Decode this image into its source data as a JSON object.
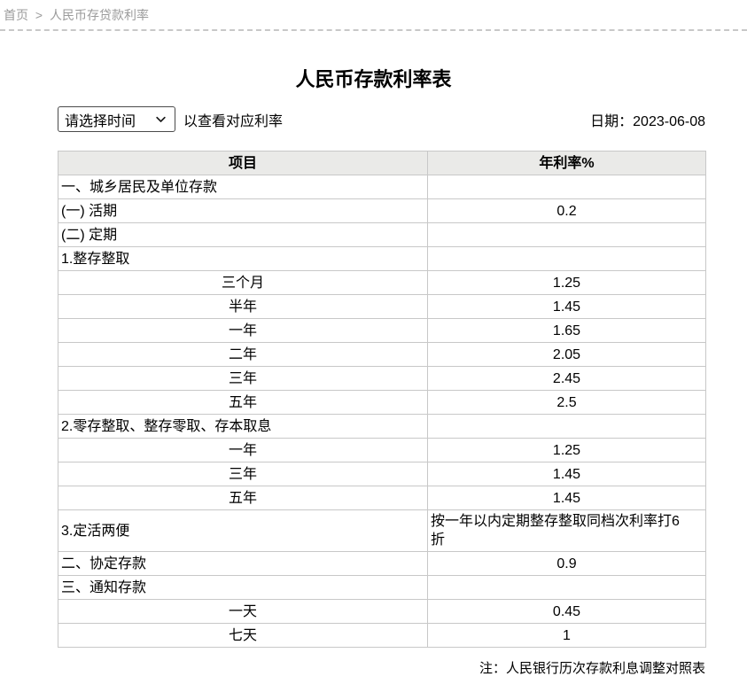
{
  "breadcrumb": {
    "home": "首页",
    "separator": ">",
    "current": "人民币存贷款利率"
  },
  "title": "人民币存款利率表",
  "selector": {
    "value": "请选择时间",
    "hint": "以查看对应利率"
  },
  "date": {
    "label": "日期：",
    "value": "2023-06-08"
  },
  "table": {
    "headers": {
      "item": "项目",
      "rate": "年利率%"
    },
    "rows": [
      {
        "item": "一、城乡居民及单位存款",
        "rate": "",
        "item_align": "left",
        "rate_align": "center"
      },
      {
        "item": "(一) 活期",
        "rate": "0.2",
        "item_align": "left",
        "rate_align": "center"
      },
      {
        "item": "(二) 定期",
        "rate": "",
        "item_align": "left",
        "rate_align": "center"
      },
      {
        "item": "1.整存整取",
        "rate": "",
        "item_align": "left",
        "rate_align": "center"
      },
      {
        "item": "三个月",
        "rate": "1.25",
        "item_align": "center",
        "rate_align": "center"
      },
      {
        "item": "半年",
        "rate": "1.45",
        "item_align": "center",
        "rate_align": "center"
      },
      {
        "item": "一年",
        "rate": "1.65",
        "item_align": "center",
        "rate_align": "center"
      },
      {
        "item": "二年",
        "rate": "2.05",
        "item_align": "center",
        "rate_align": "center"
      },
      {
        "item": "三年",
        "rate": "2.45",
        "item_align": "center",
        "rate_align": "center"
      },
      {
        "item": "五年",
        "rate": "2.5",
        "item_align": "center",
        "rate_align": "center"
      },
      {
        "item": "2.零存整取、整存零取、存本取息",
        "rate": "",
        "item_align": "left",
        "rate_align": "center"
      },
      {
        "item": "一年",
        "rate": "1.25",
        "item_align": "center",
        "rate_align": "center"
      },
      {
        "item": "三年",
        "rate": "1.45",
        "item_align": "center",
        "rate_align": "center"
      },
      {
        "item": "五年",
        "rate": "1.45",
        "item_align": "center",
        "rate_align": "center"
      },
      {
        "item": "3.定活两便",
        "rate": "按一年以内定期整存整取同档次利率打6折",
        "item_align": "left",
        "rate_align": "left"
      },
      {
        "item": "二、协定存款",
        "rate": "0.9",
        "item_align": "left",
        "rate_align": "center"
      },
      {
        "item": "三、通知存款",
        "rate": "",
        "item_align": "left",
        "rate_align": "center"
      },
      {
        "item": "一天",
        "rate": "0.45",
        "item_align": "center",
        "rate_align": "center"
      },
      {
        "item": "七天",
        "rate": "1",
        "item_align": "center",
        "rate_align": "center"
      }
    ]
  },
  "note": "注：人民银行历次存款利息调整对照表",
  "colors": {
    "header_bg": "#eaeae8",
    "table_border": "#c8c8c8",
    "breadcrumb_text": "#9b9b9b",
    "select_border": "#4a4a4a",
    "text": "#000000"
  },
  "icons": {
    "chevron_down": "chevron-down-icon"
  }
}
